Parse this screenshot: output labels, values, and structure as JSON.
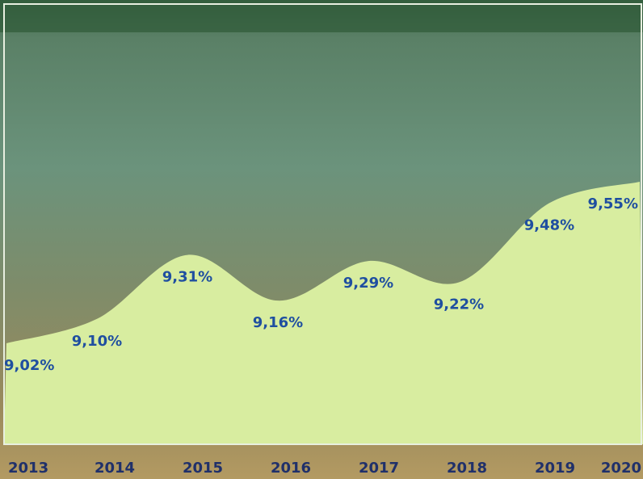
{
  "chart_data": {
    "type": "area",
    "categories": [
      "2013",
      "2014",
      "2015",
      "2016",
      "2017",
      "2018",
      "2019",
      "2020"
    ],
    "values": [
      9.02,
      9.1,
      9.31,
      9.16,
      9.29,
      9.22,
      9.48,
      9.55
    ],
    "value_labels": [
      "9,02%",
      "9,10%",
      "9,31%",
      "9,16%",
      "9,29%",
      "9,22%",
      "9,48%",
      "9,55%"
    ],
    "color": "#d8eda0"
  }
}
